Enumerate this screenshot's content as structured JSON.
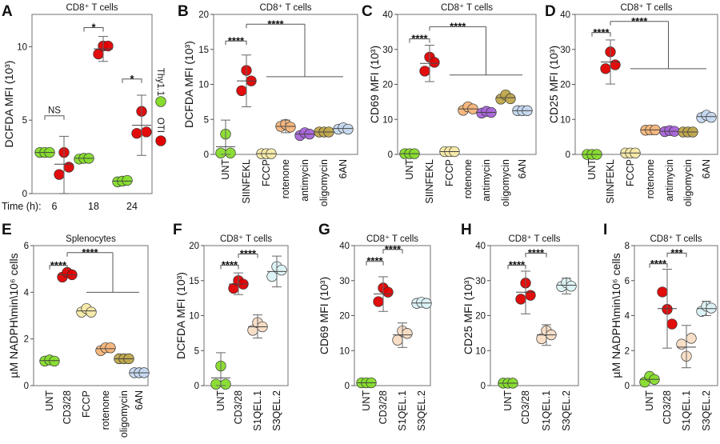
{
  "chart_data": [
    {
      "type": "scatter",
      "label": "A",
      "title": "CD8⁺ T cells",
      "ylabel": "DCFDA MFI (10³)",
      "ylim": [
        0,
        12.2
      ],
      "yticks": [
        0,
        5,
        10
      ],
      "grid": false,
      "x_prefix": "Time (h):",
      "categories": [
        "6",
        "18",
        "24"
      ],
      "legend": {
        "placement": "right",
        "entries": [
          {
            "name": "Thy1.1",
            "color": "#86dc2c"
          },
          {
            "name": "OTI",
            "color": "#e00000"
          }
        ]
      },
      "groups": [
        {
          "category": 0,
          "series": 0,
          "color": "#86dc2c",
          "values": [
            2.8,
            2.8,
            2.8
          ],
          "mean": 2.8
        },
        {
          "category": 0,
          "series": 1,
          "color": "#e00000",
          "values": [
            1.3,
            2.8,
            1.8
          ],
          "mean": 2.0,
          "err": [
            0,
            3.9
          ]
        },
        {
          "category": 1,
          "series": 0,
          "color": "#86dc2c",
          "values": [
            2.35,
            2.4,
            2.4
          ],
          "mean": 2.4
        },
        {
          "category": 1,
          "series": 1,
          "color": "#e00000",
          "values": [
            9.5,
            10.05,
            10.05
          ],
          "mean": 9.85,
          "err": [
            9.0,
            10.7
          ]
        },
        {
          "category": 2,
          "series": 0,
          "color": "#86dc2c",
          "values": [
            0.8,
            0.85,
            0.9
          ],
          "mean": 0.85
        },
        {
          "category": 2,
          "series": 1,
          "color": "#e00000",
          "values": [
            4.1,
            5.6,
            4.2
          ],
          "mean": 4.65,
          "err": [
            2.6,
            6.7
          ]
        }
      ],
      "brackets": [
        {
          "a": 0,
          "b": 1,
          "y": 5.3,
          "label": "NS"
        },
        {
          "a": 2,
          "b": 3,
          "y": 11.3,
          "label": "*"
        },
        {
          "a": 4,
          "b": 5,
          "y": 7.8,
          "label": "*"
        }
      ]
    },
    {
      "type": "scatter",
      "label": "B",
      "title": "CD8⁺ T cells",
      "ylabel": "DCFDA MFI (10³)",
      "ylim": [
        0,
        20
      ],
      "yticks": [
        0,
        5,
        10,
        15,
        20
      ],
      "grid": false,
      "categories": [
        "UNT",
        "SIINFEKL",
        "FCCP",
        "rotenone",
        "antimycin",
        "oligomycin",
        "6AN"
      ],
      "groups": [
        {
          "category": 0,
          "color": "#86dc2c",
          "values": [
            0.2,
            2.9,
            0.2
          ],
          "mean": 1.1,
          "err": [
            0,
            4.9
          ]
        },
        {
          "category": 1,
          "color": "#e00000",
          "values": [
            9.1,
            12.0,
            10.5
          ],
          "mean": 10.5,
          "err": [
            6.8,
            14.2
          ]
        },
        {
          "category": 2,
          "color": "#f7eaa8",
          "values": [
            0.1,
            0.1,
            0.1
          ],
          "mean": 0.1
        },
        {
          "category": 3,
          "color": "#f6b57a",
          "values": [
            4.0,
            4.3,
            3.9
          ],
          "mean": 4.0,
          "err": [
            3.1,
            4.9
          ]
        },
        {
          "category": 4,
          "color": "#a865d8",
          "values": [
            2.7,
            3.1,
            2.9
          ],
          "mean": 2.9
        },
        {
          "category": 5,
          "color": "#bfa64c",
          "values": [
            3.2,
            3.2,
            3.2
          ],
          "mean": 3.2
        },
        {
          "category": 6,
          "color": "#c6d9f0",
          "values": [
            3.6,
            3.8,
            3.6
          ],
          "mean": 3.7
        }
      ],
      "brackets": [
        {
          "a": 0,
          "b": 1,
          "y": 16.2,
          "label": "****"
        },
        {
          "a": 1,
          "span": [
            2,
            6
          ],
          "y": 18.6,
          "y2": 11.1,
          "label": "****"
        }
      ]
    },
    {
      "type": "scatter",
      "label": "C",
      "title": "CD8⁺ T cells",
      "ylabel": "CD69 MFI (10³)",
      "ylim": [
        0,
        40
      ],
      "yticks": [
        0,
        10,
        20,
        30,
        40
      ],
      "grid": false,
      "categories": [
        "UNT",
        "SIINFEKL",
        "FCCP",
        "rotenone",
        "antimycin",
        "oligomycin",
        "6AN"
      ],
      "groups": [
        {
          "category": 0,
          "color": "#86dc2c",
          "values": [
            0.2,
            0.2,
            0.2
          ],
          "mean": 0.2
        },
        {
          "category": 1,
          "color": "#e00000",
          "values": [
            23.8,
            27.8,
            26.3
          ],
          "mean": 26.0,
          "err": [
            20.8,
            31.2
          ]
        },
        {
          "category": 2,
          "color": "#f7eaa8",
          "values": [
            0.8,
            0.8,
            0.8
          ],
          "mean": 0.8
        },
        {
          "category": 3,
          "color": "#f6b57a",
          "values": [
            12.6,
            13.6,
            13.0
          ],
          "mean": 13.0
        },
        {
          "category": 4,
          "color": "#a865d8",
          "values": [
            11.8,
            12.3,
            12.0
          ],
          "mean": 12.0
        },
        {
          "category": 5,
          "color": "#bfa64c",
          "values": [
            15.8,
            17.0,
            15.9
          ],
          "mean": 16.2
        },
        {
          "category": 6,
          "color": "#c6d9f0",
          "values": [
            12.5,
            12.5,
            12.5
          ],
          "mean": 12.5
        }
      ],
      "brackets": [
        {
          "a": 0,
          "b": 1,
          "y": 33.0,
          "label": "****"
        },
        {
          "a": 1,
          "span": [
            2,
            6
          ],
          "y": 36.5,
          "y2": 22.7,
          "label": "****"
        }
      ]
    },
    {
      "type": "scatter",
      "label": "D",
      "title": "CD8⁺ T cells",
      "ylabel": "CD25 MFI (10³)",
      "ylim": [
        0,
        40
      ],
      "yticks": [
        0,
        10,
        20,
        30,
        40
      ],
      "grid": false,
      "categories": [
        "UNT",
        "SIINFEKL",
        "FCCP",
        "rotenone",
        "antimycin",
        "oligomycin",
        "6AN"
      ],
      "groups": [
        {
          "category": 0,
          "color": "#86dc2c",
          "values": [
            0,
            0,
            0
          ],
          "mean": 0
        },
        {
          "category": 1,
          "color": "#e00000",
          "values": [
            24.5,
            29.3,
            25.6
          ],
          "mean": 26.4,
          "err": [
            20.1,
            32.7
          ]
        },
        {
          "category": 2,
          "color": "#f7eaa8",
          "values": [
            0.4,
            0.4,
            0.4
          ],
          "mean": 0.4
        },
        {
          "category": 3,
          "color": "#f6b57a",
          "values": [
            6.9,
            7.0,
            7.0
          ],
          "mean": 7.0
        },
        {
          "category": 4,
          "color": "#a865d8",
          "values": [
            6.5,
            6.8,
            6.6
          ],
          "mean": 6.6
        },
        {
          "category": 5,
          "color": "#bfa64c",
          "values": [
            6.4,
            6.4,
            6.4
          ],
          "mean": 6.4
        },
        {
          "category": 6,
          "color": "#c6d9f0",
          "values": [
            10.5,
            11.2,
            10.6
          ],
          "mean": 10.8
        }
      ],
      "brackets": [
        {
          "a": 0,
          "b": 1,
          "y": 34.8,
          "label": "****"
        },
        {
          "a": 1,
          "span": [
            2,
            6
          ],
          "y": 38.0,
          "y2": 24.5,
          "label": "****"
        }
      ]
    },
    {
      "type": "scatter",
      "label": "E",
      "title": "Splenocytes",
      "ylabel": "µM NADPH\\min\\10⁶ cells",
      "ylim": [
        0,
        6
      ],
      "yticks": [
        0,
        2,
        4,
        6
      ],
      "grid": false,
      "categories": [
        "UNT",
        "CD3/28",
        "FCCP",
        "rotenone",
        "oligomycin",
        "6AN"
      ],
      "groups": [
        {
          "category": 0,
          "color": "#86dc2c",
          "values": [
            1.05,
            1.1,
            1.05
          ],
          "mean": 1.07
        },
        {
          "category": 1,
          "color": "#e00000",
          "values": [
            4.65,
            4.85,
            4.75
          ],
          "mean": 4.75
        },
        {
          "category": 2,
          "color": "#f7eaa8",
          "values": [
            3.15,
            3.3,
            3.15
          ],
          "mean": 3.2
        },
        {
          "category": 3,
          "color": "#f6b57a",
          "values": [
            1.5,
            1.62,
            1.62
          ],
          "mean": 1.58
        },
        {
          "category": 4,
          "color": "#bfa64c",
          "values": [
            1.15,
            1.15,
            1.15
          ],
          "mean": 1.15
        },
        {
          "category": 5,
          "color": "#c6d9f0",
          "values": [
            0.55,
            0.55,
            0.55
          ],
          "mean": 0.55
        }
      ],
      "brackets": [
        {
          "a": 0,
          "b": 1,
          "y": 5.15,
          "label": "****"
        },
        {
          "a": 1,
          "span": [
            2,
            5
          ],
          "y": 5.7,
          "y2": 4.0,
          "label": "****"
        }
      ]
    },
    {
      "type": "scatter",
      "label": "F",
      "title": "CD8⁺ T cells",
      "ylabel": "DCFDA MFI (10³)",
      "ylim": [
        0,
        20
      ],
      "yticks": [
        0,
        5,
        10,
        15,
        20
      ],
      "grid": false,
      "categories": [
        "UNT",
        "CD3/28",
        "S1QEL.1",
        "S3QEL.2"
      ],
      "groups": [
        {
          "category": 0,
          "color": "#86dc2c",
          "values": [
            0.2,
            2.8,
            0.2
          ],
          "mean": 1.1,
          "err": [
            0,
            4.7
          ]
        },
        {
          "category": 1,
          "color": "#e00000",
          "values": [
            13.9,
            15.0,
            14.5
          ],
          "mean": 14.5,
          "err": [
            13.0,
            16.1
          ]
        },
        {
          "category": 2,
          "color": "#f8dcc4",
          "values": [
            7.9,
            9.0,
            8.4
          ],
          "mean": 8.4,
          "err": [
            6.8,
            10.1
          ]
        },
        {
          "category": 3,
          "color": "#dcf2f5",
          "values": [
            15.6,
            17.0,
            16.5
          ],
          "mean": 16.3,
          "err": [
            14.1,
            18.5
          ]
        }
      ],
      "brackets": [
        {
          "a": 0,
          "b": 1,
          "y": 17.2,
          "label": "****"
        },
        {
          "a": 1,
          "b": 2,
          "y": 18.8,
          "label": "****"
        }
      ]
    },
    {
      "type": "scatter",
      "label": "G",
      "title": "CD8⁺ T cells",
      "ylabel": "CD69 MFI (10³)",
      "ylim": [
        0,
        40
      ],
      "yticks": [
        0,
        10,
        20,
        30,
        40
      ],
      "grid": false,
      "categories": [
        "UNT",
        "CD3/28",
        "S1QEL.1",
        "S3QEL.2"
      ],
      "groups": [
        {
          "category": 0,
          "color": "#86dc2c",
          "values": [
            0.8,
            0.8,
            0.8
          ],
          "mean": 0.8
        },
        {
          "category": 1,
          "color": "#e00000",
          "values": [
            24.0,
            27.9,
            26.7
          ],
          "mean": 26.2,
          "err": [
            21.2,
            31.1
          ]
        },
        {
          "category": 2,
          "color": "#f8dcc4",
          "values": [
            13.0,
            15.6,
            14.9
          ],
          "mean": 14.5,
          "err": [
            10.9,
            17.9
          ]
        },
        {
          "category": 3,
          "color": "#dcf2f5",
          "values": [
            23.5,
            23.8,
            23.5
          ],
          "mean": 23.6
        }
      ],
      "brackets": [
        {
          "a": 0,
          "b": 1,
          "y": 35.5,
          "label": "****"
        },
        {
          "a": 1,
          "b": 2,
          "y": 38.9,
          "label": "****"
        }
      ]
    },
    {
      "type": "scatter",
      "label": "H",
      "title": "CD8⁺ T cells",
      "ylabel": "CD25 MFI (10³)",
      "ylim": [
        0,
        40
      ],
      "yticks": [
        0,
        10,
        20,
        30,
        40
      ],
      "grid": false,
      "categories": [
        "UNT",
        "CD3/28",
        "S1QEL.1",
        "S3QEL.2"
      ],
      "groups": [
        {
          "category": 0,
          "color": "#86dc2c",
          "values": [
            0.7,
            0.7,
            0.7
          ],
          "mean": 0.7
        },
        {
          "category": 1,
          "color": "#e00000",
          "values": [
            24.7,
            29.3,
            25.8
          ],
          "mean": 26.7,
          "err": [
            20.5,
            32.7
          ]
        },
        {
          "category": 2,
          "color": "#f8dcc4",
          "values": [
            13.4,
            15.7,
            14.5
          ],
          "mean": 14.5,
          "err": [
            11.5,
            17.4
          ]
        },
        {
          "category": 3,
          "color": "#dcf2f5",
          "values": [
            28.3,
            29.4,
            28.4
          ],
          "mean": 28.7,
          "err": [
            26.2,
            30.7
          ]
        }
      ],
      "brackets": [
        {
          "a": 0,
          "b": 1,
          "y": 34.4,
          "label": "****"
        },
        {
          "a": 1,
          "b": 2,
          "y": 37.8,
          "label": "****"
        }
      ]
    },
    {
      "type": "scatter",
      "label": "I",
      "title": "CD8⁺ T cells",
      "ylabel": "µM NADPH\\min\\10⁶ cells",
      "ylim": [
        0,
        8
      ],
      "yticks": [
        0,
        2,
        4,
        6,
        8
      ],
      "grid": false,
      "categories": [
        "UNT",
        "CD3/28",
        "S1QEL.1",
        "S3QEL.2"
      ],
      "groups": [
        {
          "category": 0,
          "color": "#86dc2c",
          "values": [
            0.2,
            0.53,
            0.35
          ],
          "mean": 0.36
        },
        {
          "category": 1,
          "color": "#e00000",
          "values": [
            5.35,
            4.36,
            3.52
          ],
          "mean": 4.4,
          "err": [
            2.14,
            6.65
          ]
        },
        {
          "category": 2,
          "color": "#f8dcc4",
          "values": [
            2.37,
            1.68,
            2.7
          ],
          "mean": 2.2,
          "err": [
            1.02,
            3.44
          ]
        },
        {
          "category": 3,
          "color": "#dcf2f5",
          "values": [
            4.24,
            4.54,
            4.43
          ],
          "mean": 4.4,
          "err": [
            4.0,
            4.82
          ]
        }
      ],
      "brackets": [
        {
          "a": 0,
          "b": 1,
          "y": 6.96,
          "label": "****"
        },
        {
          "a": 1,
          "b": 2,
          "y": 7.57,
          "label": "***"
        }
      ]
    }
  ]
}
